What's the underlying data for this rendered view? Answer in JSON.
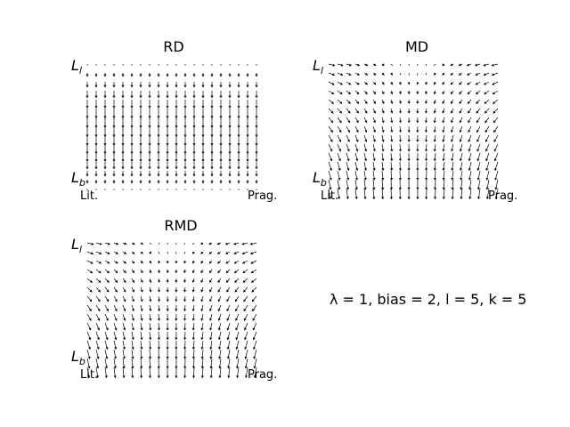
{
  "annotation": "λ = 1, bias = 2, l = 5, k = 5",
  "chart_data": [
    {
      "type": "quiver",
      "title": "RD",
      "y_top_label": {
        "main": "L",
        "sub": "l"
      },
      "y_bottom_label": {
        "main": "L",
        "sub": "b"
      },
      "x_left_label": "Lit.",
      "x_right_label": "Prag.",
      "dynamics": "RD",
      "grid": {
        "nx": 20,
        "ny": 15
      },
      "color": "#000000"
    },
    {
      "type": "quiver",
      "title": "MD",
      "y_top_label": {
        "main": "L",
        "sub": "l"
      },
      "y_bottom_label": {
        "main": "L",
        "sub": "b"
      },
      "x_left_label": "Lit.",
      "x_right_label": "Prag.",
      "dynamics": "MD",
      "grid": {
        "nx": 20,
        "ny": 15
      },
      "color": "#000000"
    },
    {
      "type": "quiver",
      "title": "RMD",
      "y_top_label": {
        "main": "L",
        "sub": "l"
      },
      "y_bottom_label": {
        "main": "L",
        "sub": "b"
      },
      "x_left_label": "Lit.",
      "x_right_label": "Prag.",
      "dynamics": "RMD",
      "grid": {
        "nx": 20,
        "ny": 15
      },
      "color": "#000000"
    }
  ]
}
